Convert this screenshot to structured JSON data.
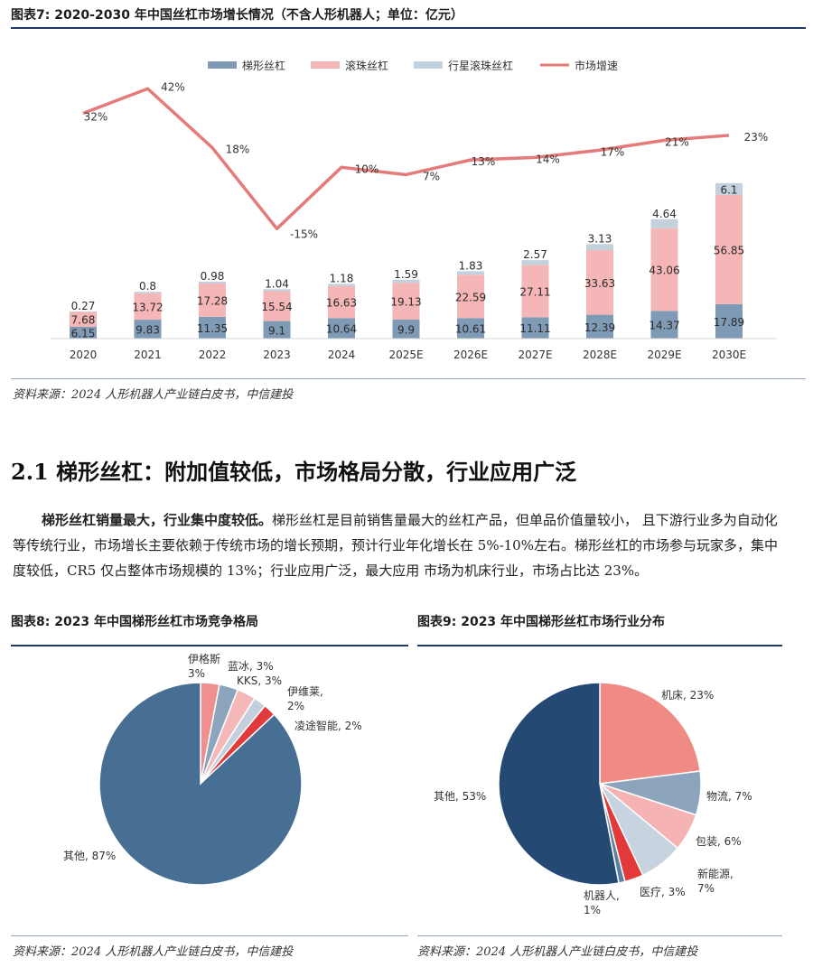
{
  "fig7": {
    "title": "图表7:  2020-2030 年中国丝杠市场增长情况（不含人形机器人；单位：亿元）",
    "source": "资料来源：2024 人形机器人产业链白皮书，中信建投"
  },
  "section": {
    "heading": "2.1  梯形丝杠：附加值较低，市场格局分散，行业应用广泛"
  },
  "paragraph": {
    "lead": "梯形丝杠销量最大，行业集中度较低。",
    "body": "梯形丝杠是目前销售量最大的丝杠产品，但单品价值量较小， 且下游行业多为自动化等传统行业，市场增长主要依赖于传统市场的增长预期，预计行业年化增长在 5%-10%左右。梯形丝杠的市场参与玩家多，集中度较低，CR5 仅占整体市场规模的 13%；行业应用广泛，最大应用 市场为机床行业，市场占比达 23%。"
  },
  "fig8": {
    "title": "图表8:   2023 年中国梯形丝杠市场竞争格局",
    "source": "资料来源：2024 人形机器人产业链白皮书，中信建投"
  },
  "fig9": {
    "title": "图表9:   2023 年中国梯形丝杠市场行业分布",
    "source": "资料来源：2024 人形机器人产业链白皮书，中信建投"
  },
  "chart_data": [
    {
      "type": "bar",
      "stacked": true,
      "categories": [
        "2020",
        "2021",
        "2022",
        "2023",
        "2024",
        "2025E",
        "2026E",
        "2027E",
        "2028E",
        "2029E",
        "2030E"
      ],
      "series": [
        {
          "name": "梯形丝杠",
          "color": "#7f9ab5",
          "values": [
            6.15,
            9.83,
            11.35,
            9.1,
            10.64,
            9.9,
            10.61,
            11.11,
            12.39,
            14.37,
            17.89
          ]
        },
        {
          "name": "滚珠丝杠",
          "color": "#f4b6b6",
          "values": [
            7.68,
            13.72,
            17.28,
            15.54,
            16.63,
            19.13,
            22.59,
            27.11,
            33.63,
            43.06,
            56.85
          ]
        },
        {
          "name": "行星滚珠丝杠",
          "color": "#c3d0dd",
          "values": [
            0.27,
            0.8,
            0.98,
            1.04,
            1.18,
            1.59,
            1.83,
            2.57,
            3.13,
            4.64,
            6.1
          ]
        }
      ],
      "line": {
        "name": "市场增速",
        "color": "#e47a7a",
        "values": [
          32,
          42,
          18,
          -15,
          10,
          7,
          13,
          14,
          17,
          21,
          23
        ],
        "labels": [
          "32%",
          "42%",
          "18%",
          "-15%",
          "10%",
          "7%",
          "13%",
          "14%",
          "17%",
          "21%",
          "23%"
        ]
      },
      "legend": "top-center"
    },
    {
      "type": "pie",
      "labels": [
        "伊格斯, 3%",
        "蓝冰, 3%",
        "KKS, 3%",
        "伊维莱, 2%",
        "凌途智能, 2%",
        "其他, 87%"
      ],
      "values": [
        3,
        3,
        3,
        2,
        2,
        87
      ],
      "colors": [
        "#ef8f8f",
        "#8ca4bc",
        "#f5b8b8",
        "#c3cfdc",
        "#e23a3a",
        "#476f94"
      ]
    },
    {
      "type": "pie",
      "labels": [
        "机床, 23%",
        "物流, 7%",
        "包装, 6%",
        "新能源, 7%",
        "医疗, 3%",
        "机器人, 1%",
        "其他, 53%"
      ],
      "values": [
        23,
        7,
        6,
        7,
        3,
        1,
        53
      ],
      "colors": [
        "#ef8b84",
        "#8ca4bc",
        "#f5b3b3",
        "#c7d3de",
        "#e23a3a",
        "#5a80a6",
        "#244a73"
      ]
    }
  ]
}
